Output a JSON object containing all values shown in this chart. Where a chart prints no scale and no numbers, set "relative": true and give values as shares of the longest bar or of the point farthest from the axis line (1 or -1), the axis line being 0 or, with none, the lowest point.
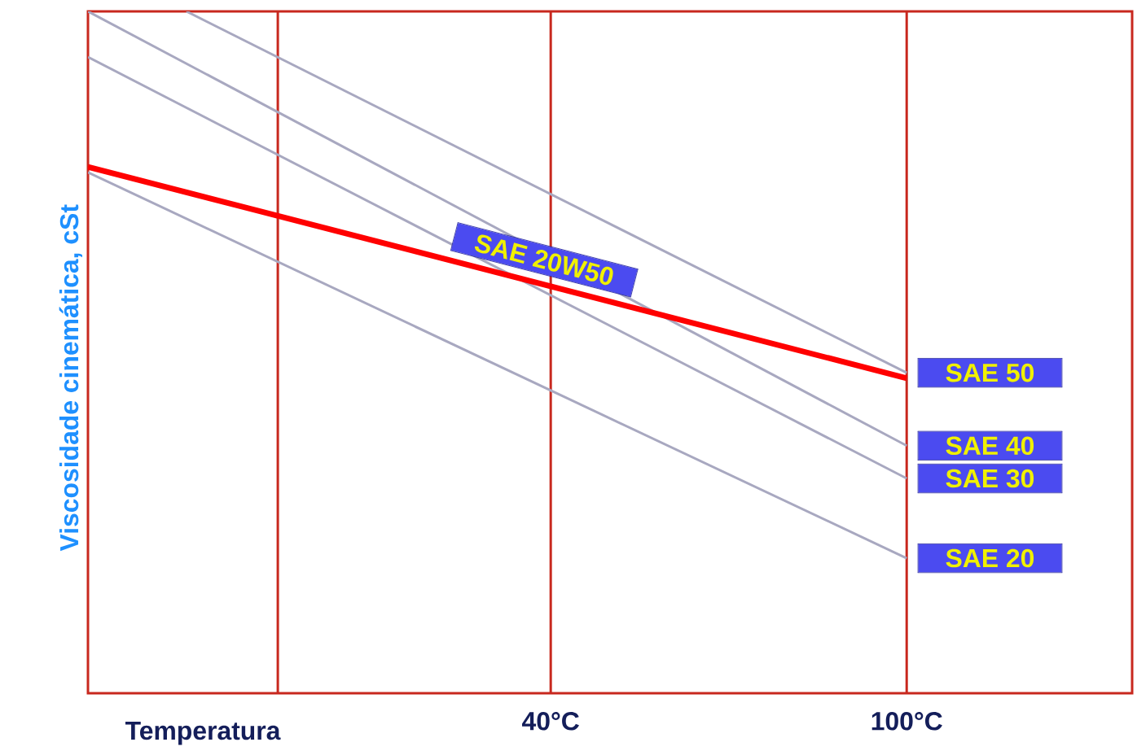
{
  "chart_data": {
    "type": "line",
    "relative": true,
    "xlabel": "Temperatura",
    "ylabel": "Viscosidade cinemática, cSt",
    "x": [
      -38,
      100
    ],
    "xlim": [
      -38,
      138
    ],
    "xticks": [
      {
        "value": -6,
        "label": null
      },
      {
        "value": 40,
        "label": "40°C"
      },
      {
        "value": 100,
        "label": "100°C"
      }
    ],
    "grid": "x",
    "series": [
      {
        "name": "SAE 20",
        "color": "#a8a8c0",
        "values": [
          0.764,
          0.198
        ]
      },
      {
        "name": "SAE 30",
        "color": "#a8a8c0",
        "values": [
          0.933,
          0.315
        ]
      },
      {
        "name": "SAE 40",
        "color": "#a8a8c0",
        "values": [
          1.0,
          0.363
        ]
      },
      {
        "name": "SAE 50",
        "color": "#a8a8c0",
        "x": [
          -21.4,
          100
        ],
        "values": [
          1.0,
          0.47
        ]
      },
      {
        "name": "SAE 20W50",
        "color": "#ff0000",
        "values": [
          0.772,
          0.462
        ]
      }
    ]
  }
}
